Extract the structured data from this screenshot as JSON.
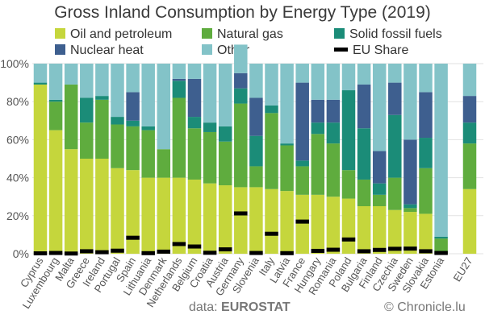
{
  "chart_data": {
    "type": "bar",
    "stacked": true,
    "title": "Gross Inland Consumption by Energy Type (2019)",
    "categories": [
      "Cyprus",
      "Luxembourg",
      "Malta",
      "Greece",
      "Ireland",
      "Portugal",
      "Spain",
      "Lithuania",
      "Denmark",
      "Netherlands",
      "Belgium",
      "Croatia",
      "Austria",
      "Germany",
      "Slovenia",
      "Italy",
      "Latvia",
      "France",
      "Hungary",
      "Romania",
      "Poland",
      "Bulgaria",
      "Finland",
      "Czechia",
      "Sweden",
      "Slovakia",
      "Estonia",
      "EU27"
    ],
    "series": [
      {
        "name": "Oil and petroleum",
        "color": "#c5d63c",
        "values": [
          89,
          65,
          55,
          50,
          50,
          45,
          44,
          40,
          40,
          40,
          39,
          37,
          36,
          35,
          35,
          34,
          33,
          31,
          31,
          30,
          29,
          25,
          25,
          23,
          22,
          21,
          0,
          34
        ]
      },
      {
        "name": "Natural gas",
        "color": "#5fac3e",
        "values": [
          0,
          15,
          34,
          19,
          31,
          23,
          23,
          25,
          15,
          42,
          27,
          27,
          23,
          44,
          11,
          40,
          24,
          15,
          32,
          28,
          15,
          14,
          6,
          17,
          2,
          24,
          8,
          24
        ]
      },
      {
        "name": "Solid fossil fuels",
        "color": "#1b8c78",
        "values": [
          1,
          1,
          0,
          13,
          2,
          4,
          3,
          2,
          0,
          9,
          6,
          5,
          8,
          8,
          16,
          4,
          1,
          3,
          6,
          11,
          42,
          27,
          6,
          33,
          2,
          16,
          1,
          11
        ]
      },
      {
        "name": "Nuclear heat",
        "color": "#3e5f8f",
        "values": [
          0,
          0,
          0,
          0,
          0,
          0,
          15,
          0,
          0,
          1,
          20,
          0,
          0,
          8,
          20,
          0,
          0,
          41,
          12,
          12,
          0,
          23,
          17,
          17,
          34,
          24,
          0,
          14
        ]
      },
      {
        "name": "Other",
        "color": "#83c3c8",
        "values": [
          10,
          19,
          11,
          18,
          17,
          28,
          15,
          33,
          45,
          8,
          8,
          31,
          33,
          15,
          18,
          22,
          42,
          10,
          19,
          19,
          14,
          11,
          46,
          10,
          40,
          15,
          91,
          17
        ]
      }
    ],
    "eu_share": {
      "name": "EU Share",
      "values": [
        0.2,
        0.4,
        0.1,
        1.3,
        0.8,
        1.6,
        8.4,
        0.3,
        1.1,
        5.1,
        3.8,
        0.5,
        2.3,
        21.2,
        0.4,
        10.5,
        0.3,
        16.9,
        1.5,
        2.1,
        7.5,
        1.3,
        2.0,
        2.6,
        2.7,
        1.3,
        0.4,
        null
      ]
    },
    "ylim": [
      0,
      100
    ],
    "yticks": [
      "0%",
      "20%",
      "40%",
      "60%",
      "80%",
      "100%"
    ],
    "grid": true,
    "legend_placement": "top",
    "background": "#ffffff",
    "grid_color": "#e2e2e2"
  },
  "footer": {
    "source_prefix": "data:",
    "source_name": "EUROSTAT",
    "copyright_symbol": "©",
    "site": "Chronicle.lu"
  }
}
